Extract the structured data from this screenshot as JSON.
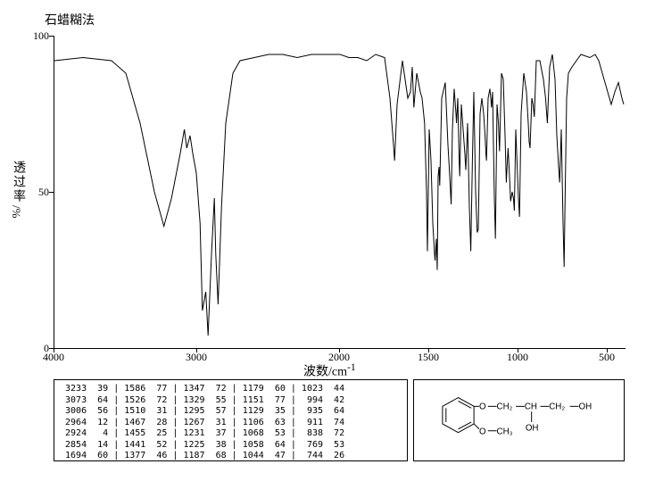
{
  "title": "石蜡糊法",
  "ylabel_main": "透过率",
  "ylabel_sub": "/%",
  "xlabel": "波数/cm",
  "xlabel_sup": "-1",
  "chart": {
    "type": "line",
    "xlim": [
      4000,
      400
    ],
    "ylim": [
      0,
      100
    ],
    "yticks": [
      0,
      50,
      100
    ],
    "xticks": [
      4000,
      3000,
      2000,
      1500,
      1000,
      500
    ],
    "line_color": "#000000",
    "line_width": 1,
    "background_color": "#ffffff",
    "points": [
      [
        4000,
        92
      ],
      [
        3800,
        93
      ],
      [
        3600,
        92
      ],
      [
        3500,
        88
      ],
      [
        3400,
        72
      ],
      [
        3300,
        50
      ],
      [
        3233,
        39
      ],
      [
        3180,
        48
      ],
      [
        3120,
        62
      ],
      [
        3090,
        70
      ],
      [
        3073,
        64
      ],
      [
        3050,
        68
      ],
      [
        3030,
        62
      ],
      [
        3006,
        56
      ],
      [
        2980,
        40
      ],
      [
        2964,
        12
      ],
      [
        2940,
        18
      ],
      [
        2924,
        4
      ],
      [
        2900,
        30
      ],
      [
        2880,
        48
      ],
      [
        2870,
        30
      ],
      [
        2854,
        14
      ],
      [
        2830,
        45
      ],
      [
        2800,
        72
      ],
      [
        2750,
        88
      ],
      [
        2700,
        92
      ],
      [
        2600,
        93
      ],
      [
        2500,
        94
      ],
      [
        2400,
        94
      ],
      [
        2300,
        93
      ],
      [
        2200,
        94
      ],
      [
        2100,
        94
      ],
      [
        2000,
        94
      ],
      [
        1950,
        93
      ],
      [
        1900,
        93
      ],
      [
        1850,
        92
      ],
      [
        1800,
        94
      ],
      [
        1750,
        93
      ],
      [
        1720,
        80
      ],
      [
        1700,
        65
      ],
      [
        1694,
        60
      ],
      [
        1680,
        78
      ],
      [
        1650,
        92
      ],
      [
        1620,
        80
      ],
      [
        1605,
        82
      ],
      [
        1595,
        90
      ],
      [
        1586,
        77
      ],
      [
        1570,
        88
      ],
      [
        1550,
        82
      ],
      [
        1540,
        80
      ],
      [
        1526,
        72
      ],
      [
        1515,
        50
      ],
      [
        1510,
        31
      ],
      [
        1500,
        70
      ],
      [
        1490,
        60
      ],
      [
        1480,
        40
      ],
      [
        1470,
        30
      ],
      [
        1467,
        28
      ],
      [
        1460,
        35
      ],
      [
        1455,
        25
      ],
      [
        1450,
        55
      ],
      [
        1445,
        58
      ],
      [
        1441,
        52
      ],
      [
        1430,
        80
      ],
      [
        1410,
        85
      ],
      [
        1395,
        65
      ],
      [
        1385,
        55
      ],
      [
        1377,
        46
      ],
      [
        1370,
        70
      ],
      [
        1360,
        83
      ],
      [
        1350,
        75
      ],
      [
        1347,
        72
      ],
      [
        1340,
        80
      ],
      [
        1332,
        60
      ],
      [
        1329,
        55
      ],
      [
        1320,
        78
      ],
      [
        1310,
        70
      ],
      [
        1300,
        62
      ],
      [
        1295,
        57
      ],
      [
        1285,
        72
      ],
      [
        1275,
        45
      ],
      [
        1267,
        31
      ],
      [
        1258,
        60
      ],
      [
        1250,
        82
      ],
      [
        1240,
        50
      ],
      [
        1231,
        37
      ],
      [
        1225,
        38
      ],
      [
        1215,
        75
      ],
      [
        1205,
        80
      ],
      [
        1195,
        75
      ],
      [
        1187,
        68
      ],
      [
        1182,
        62
      ],
      [
        1179,
        60
      ],
      [
        1170,
        80
      ],
      [
        1160,
        83
      ],
      [
        1155,
        80
      ],
      [
        1151,
        77
      ],
      [
        1145,
        82
      ],
      [
        1135,
        48
      ],
      [
        1129,
        35
      ],
      [
        1120,
        78
      ],
      [
        1112,
        72
      ],
      [
        1106,
        63
      ],
      [
        1095,
        88
      ],
      [
        1085,
        86
      ],
      [
        1075,
        68
      ],
      [
        1068,
        53
      ],
      [
        1062,
        60
      ],
      [
        1058,
        64
      ],
      [
        1050,
        55
      ],
      [
        1044,
        47
      ],
      [
        1035,
        50
      ],
      [
        1028,
        48
      ],
      [
        1023,
        44
      ],
      [
        1015,
        70
      ],
      [
        1005,
        55
      ],
      [
        1000,
        48
      ],
      [
        994,
        42
      ],
      [
        985,
        75
      ],
      [
        970,
        88
      ],
      [
        955,
        82
      ],
      [
        945,
        72
      ],
      [
        940,
        66
      ],
      [
        935,
        64
      ],
      [
        925,
        80
      ],
      [
        918,
        78
      ],
      [
        911,
        74
      ],
      [
        900,
        92
      ],
      [
        880,
        92
      ],
      [
        860,
        86
      ],
      [
        848,
        80
      ],
      [
        843,
        76
      ],
      [
        838,
        72
      ],
      [
        825,
        90
      ],
      [
        810,
        94
      ],
      [
        795,
        86
      ],
      [
        785,
        68
      ],
      [
        775,
        58
      ],
      [
        769,
        53
      ],
      [
        760,
        70
      ],
      [
        750,
        40
      ],
      [
        744,
        26
      ],
      [
        738,
        50
      ],
      [
        730,
        80
      ],
      [
        720,
        88
      ],
      [
        700,
        90
      ],
      [
        650,
        94
      ],
      [
        600,
        93
      ],
      [
        570,
        94
      ],
      [
        550,
        92
      ],
      [
        530,
        88
      ],
      [
        510,
        84
      ],
      [
        500,
        82
      ],
      [
        480,
        78
      ],
      [
        460,
        82
      ],
      [
        440,
        85
      ],
      [
        420,
        80
      ],
      [
        410,
        78
      ]
    ]
  },
  "table": {
    "cols": 5,
    "rows": [
      [
        [
          3233,
          39
        ],
        [
          1586,
          77
        ],
        [
          1347,
          72
        ],
        [
          1179,
          60
        ],
        [
          1023,
          44
        ]
      ],
      [
        [
          3073,
          64
        ],
        [
          1526,
          72
        ],
        [
          1329,
          55
        ],
        [
          1151,
          77
        ],
        [
          994,
          42
        ]
      ],
      [
        [
          3006,
          56
        ],
        [
          1510,
          31
        ],
        [
          1295,
          57
        ],
        [
          1129,
          35
        ],
        [
          935,
          64
        ]
      ],
      [
        [
          2964,
          12
        ],
        [
          1467,
          28
        ],
        [
          1267,
          31
        ],
        [
          1106,
          63
        ],
        [
          911,
          74
        ]
      ],
      [
        [
          2924,
          4
        ],
        [
          1455,
          25
        ],
        [
          1231,
          37
        ],
        [
          1068,
          53
        ],
        [
          838,
          72
        ]
      ],
      [
        [
          2854,
          14
        ],
        [
          1441,
          52
        ],
        [
          1225,
          38
        ],
        [
          1058,
          64
        ],
        [
          769,
          53
        ]
      ],
      [
        [
          1694,
          60
        ],
        [
          1377,
          46
        ],
        [
          1187,
          68
        ],
        [
          1044,
          47
        ],
        [
          744,
          26
        ]
      ]
    ],
    "font_size": 10,
    "border_color": "#000000"
  },
  "molecule": {
    "labels": {
      "och2": "CH₂",
      "ch": "CH",
      "ch2oh_ch2": "CH₂",
      "oh": "OH",
      "och3": "CH₃",
      "o1": "O",
      "o2": "O"
    }
  },
  "colors": {
    "text": "#000000",
    "background": "#ffffff",
    "border": "#000000"
  }
}
